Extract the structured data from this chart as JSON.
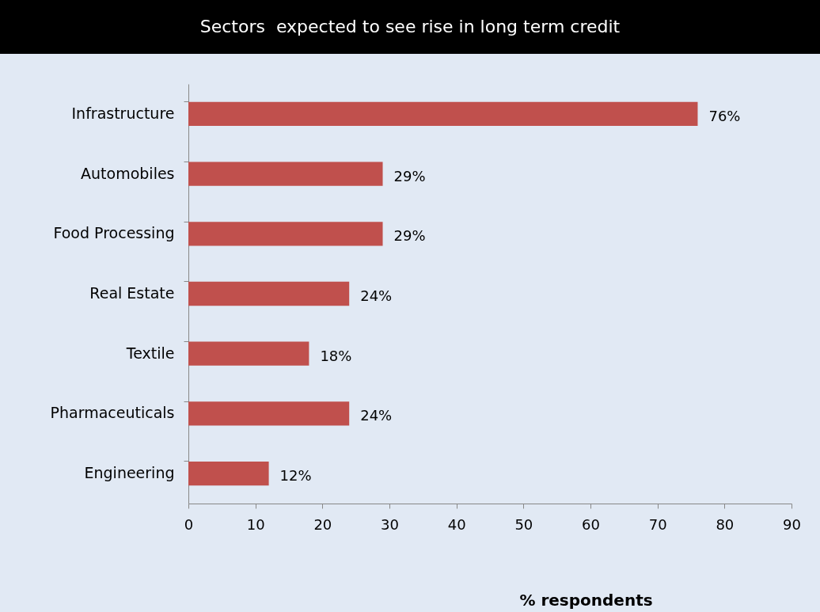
{
  "chart_data": {
    "type": "bar",
    "orientation": "horizontal",
    "title": "Sectors  expected to see rise in long term credit",
    "categories": [
      "Infrastructure",
      "Automobiles",
      "Food Processing",
      "Real Estate",
      "Textile",
      "Pharmaceuticals",
      "Engineering"
    ],
    "values": [
      76,
      29,
      29,
      24,
      18,
      24,
      12
    ],
    "value_labels": [
      "76%",
      "29%",
      "29%",
      "24%",
      "18%",
      "24%",
      "12%"
    ],
    "color": "#c0504d",
    "xlabel": "% respondents",
    "xlim": [
      0,
      90
    ],
    "xticks": [
      0,
      10,
      20,
      30,
      40,
      50,
      60,
      70,
      80,
      90
    ]
  }
}
